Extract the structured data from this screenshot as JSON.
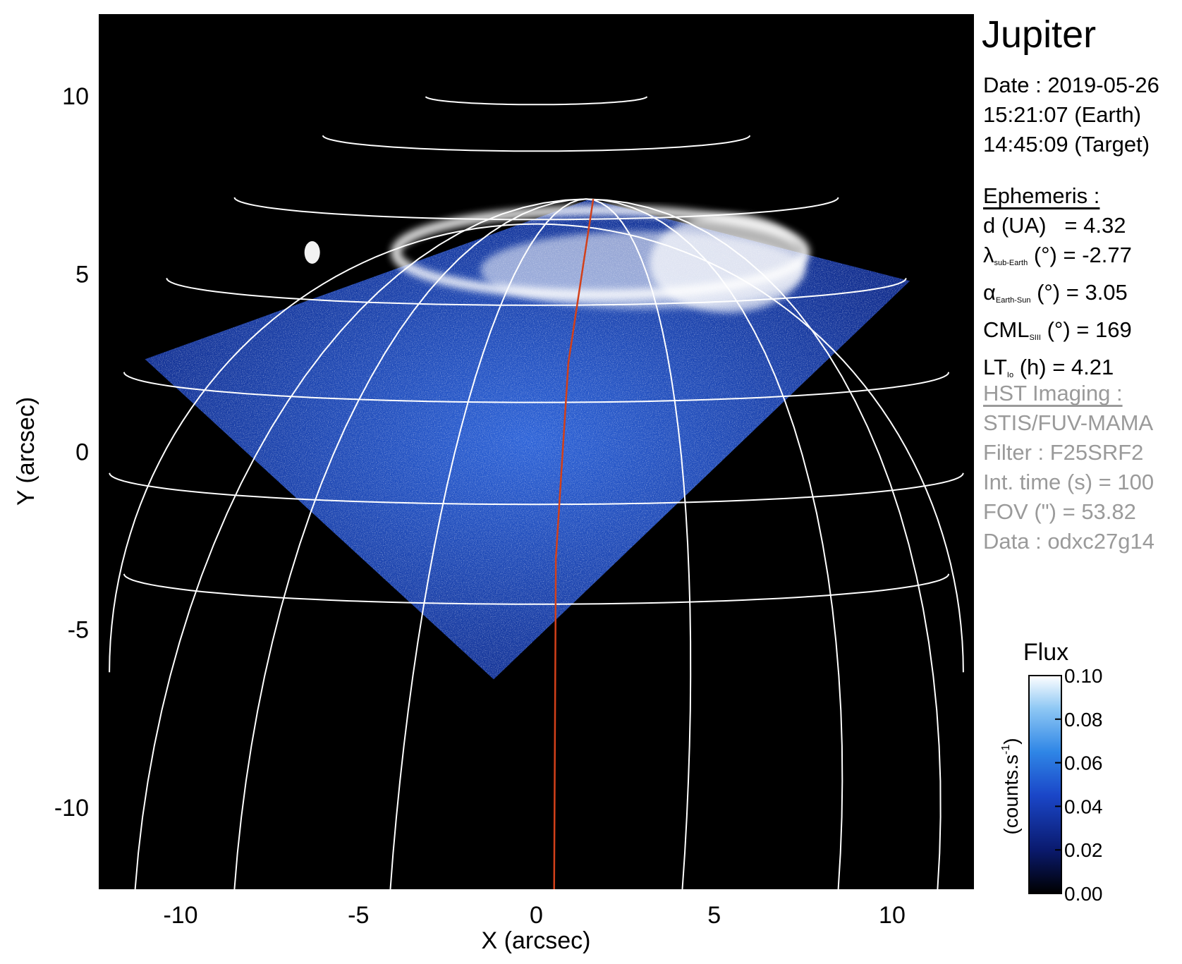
{
  "chart_data": {
    "type": "heatmap",
    "xlabel": "X (arcsec)",
    "ylabel": "Y (arcsec)",
    "xlim": [
      -12.3,
      12.3
    ],
    "ylim": [
      -12.3,
      12.3
    ],
    "xticks": [
      -10,
      -5,
      0,
      5,
      10
    ],
    "yticks": [
      -10,
      -5,
      0,
      5,
      10
    ],
    "xtick_labels": [
      "-10",
      "-5",
      "0",
      "5",
      "10"
    ],
    "ytick_labels": [
      "-10",
      "-5",
      "0",
      "5",
      "10"
    ],
    "grid_color": "#ffffff",
    "background_color": "#000000",
    "field_of_view_corners": [
      [
        -11.0,
        2.6
      ],
      [
        -1.2,
        -6.4
      ],
      [
        10.5,
        4.8
      ],
      [
        1.5,
        7.1
      ]
    ],
    "auroral_oval_center": [
      1.8,
      5.4
    ],
    "meridian_line": {
      "color": "#d2401a",
      "points": [
        [
          1.6,
          7.1
        ],
        [
          0.9,
          2.5
        ],
        [
          0.55,
          -3.0
        ],
        [
          0.5,
          -12.3
        ]
      ]
    },
    "colorbar": {
      "label": "Flux",
      "unit_label": "(counts.s",
      "unit_superscript": "-1",
      "unit_close": ")",
      "min": 0.0,
      "max": 0.1,
      "ticks": [
        "0.10",
        "0.08",
        "0.06",
        "0.04",
        "0.02",
        "0.00"
      ],
      "colors": [
        "#000000",
        "#0a1a6e",
        "#1a46c8",
        "#2f86e6",
        "#8fc8f4",
        "#ffffff"
      ]
    }
  },
  "panel": {
    "title": "Jupiter",
    "date_line": "Date : 2019-05-26",
    "earth_time": "15:21:07 (Earth)",
    "target_time": "14:45:09 (Target)",
    "ephemeris_header": "Ephemeris :",
    "d_label": "d (UA)",
    "d_value": "= 4.32",
    "lambda_symbol": "λ",
    "lambda_sub": "sub-Earth",
    "lambda_value": "(°) = -2.77",
    "alpha_symbol": "α",
    "alpha_sub": "Earth-Sun",
    "alpha_value": "(°) = 3.05",
    "cml_main": "CML",
    "cml_sub": "SIII",
    "cml_value": "(°) = 169",
    "lt_main": "LT",
    "lt_sub": "Io",
    "lt_value": "(h) = 4.21",
    "hst_header": "HST Imaging :",
    "instrument": "STIS/FUV-MAMA",
    "filter": "Filter : F25SRF2",
    "int_time": "Int. time (s) = 100",
    "fov": "FOV (\") = 53.82",
    "data_id": "Data : odxc27g14",
    "grey_color": "#9a9a9a"
  }
}
